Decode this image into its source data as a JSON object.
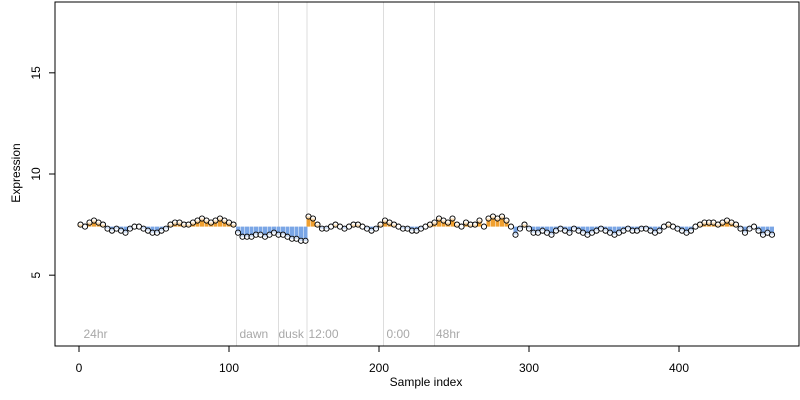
{
  "chart_data": {
    "type": "scatter",
    "title": "",
    "xlabel": "Sample index",
    "ylabel": "Expression",
    "xlim": [
      -16,
      480
    ],
    "ylim": [
      1.5,
      18.5
    ],
    "x_ticks": [
      0,
      100,
      200,
      300,
      400
    ],
    "y_ticks": [
      5,
      10,
      15
    ],
    "grid": false,
    "legend": "none",
    "colors": {
      "point_stroke": "#000000",
      "point_fill": "#ffffff",
      "bar_above": "#f0a030",
      "bar_below": "#7aa6e6",
      "divider": "#dddddd",
      "region_label": "#a8a8a8"
    },
    "baseline": 7.4,
    "dividers": [
      105,
      133,
      152,
      203,
      237
    ],
    "region_labels": [
      {
        "text": "24hr",
        "x": 3
      },
      {
        "text": "dawn",
        "x": 107
      },
      {
        "text": "dusk",
        "x": 133
      },
      {
        "text": "12:00",
        "x": 153
      },
      {
        "text": "0:00",
        "x": 205
      },
      {
        "text": "48hr",
        "x": 238
      }
    ],
    "n_samples": 462,
    "points": [
      [
        1,
        7.5
      ],
      [
        4,
        7.4
      ],
      [
        7,
        7.6
      ],
      [
        10,
        7.7
      ],
      [
        13,
        7.6
      ],
      [
        16,
        7.5
      ],
      [
        19,
        7.3
      ],
      [
        22,
        7.2
      ],
      [
        25,
        7.3
      ],
      [
        28,
        7.2
      ],
      [
        31,
        7.1
      ],
      [
        34,
        7.3
      ],
      [
        37,
        7.4
      ],
      [
        40,
        7.4
      ],
      [
        43,
        7.3
      ],
      [
        46,
        7.2
      ],
      [
        49,
        7.1
      ],
      [
        52,
        7.1
      ],
      [
        55,
        7.2
      ],
      [
        58,
        7.3
      ],
      [
        61,
        7.5
      ],
      [
        64,
        7.6
      ],
      [
        67,
        7.6
      ],
      [
        70,
        7.5
      ],
      [
        73,
        7.5
      ],
      [
        76,
        7.6
      ],
      [
        79,
        7.7
      ],
      [
        82,
        7.8
      ],
      [
        85,
        7.7
      ],
      [
        88,
        7.6
      ],
      [
        91,
        7.7
      ],
      [
        94,
        7.8
      ],
      [
        97,
        7.7
      ],
      [
        100,
        7.6
      ],
      [
        103,
        7.5
      ],
      [
        106,
        7.1
      ],
      [
        109,
        6.9
      ],
      [
        112,
        6.9
      ],
      [
        115,
        6.9
      ],
      [
        118,
        7.0
      ],
      [
        121,
        7.0
      ],
      [
        124,
        6.9
      ],
      [
        127,
        7.0
      ],
      [
        130,
        7.1
      ],
      [
        133,
        7.0
      ],
      [
        136,
        7.0
      ],
      [
        139,
        6.9
      ],
      [
        142,
        6.8
      ],
      [
        145,
        6.8
      ],
      [
        148,
        6.7
      ],
      [
        151,
        6.7
      ],
      [
        153,
        7.9
      ],
      [
        156,
        7.8
      ],
      [
        159,
        7.5
      ],
      [
        162,
        7.3
      ],
      [
        165,
        7.3
      ],
      [
        168,
        7.4
      ],
      [
        171,
        7.5
      ],
      [
        174,
        7.4
      ],
      [
        177,
        7.3
      ],
      [
        180,
        7.4
      ],
      [
        183,
        7.5
      ],
      [
        186,
        7.5
      ],
      [
        189,
        7.4
      ],
      [
        192,
        7.3
      ],
      [
        195,
        7.2
      ],
      [
        198,
        7.3
      ],
      [
        201,
        7.5
      ],
      [
        204,
        7.7
      ],
      [
        207,
        7.6
      ],
      [
        210,
        7.5
      ],
      [
        213,
        7.4
      ],
      [
        216,
        7.3
      ],
      [
        219,
        7.3
      ],
      [
        222,
        7.2
      ],
      [
        225,
        7.2
      ],
      [
        228,
        7.3
      ],
      [
        231,
        7.4
      ],
      [
        234,
        7.5
      ],
      [
        237,
        7.6
      ],
      [
        240,
        7.8
      ],
      [
        243,
        7.7
      ],
      [
        246,
        7.6
      ],
      [
        249,
        7.8
      ],
      [
        252,
        7.5
      ],
      [
        255,
        7.4
      ],
      [
        258,
        7.6
      ],
      [
        261,
        7.5
      ],
      [
        264,
        7.5
      ],
      [
        267,
        7.7
      ],
      [
        270,
        7.4
      ],
      [
        273,
        7.8
      ],
      [
        276,
        7.9
      ],
      [
        279,
        7.8
      ],
      [
        282,
        7.9
      ],
      [
        285,
        7.7
      ],
      [
        288,
        7.4
      ],
      [
        291,
        7.0
      ],
      [
        294,
        7.3
      ],
      [
        297,
        7.5
      ],
      [
        300,
        7.3
      ],
      [
        303,
        7.1
      ],
      [
        306,
        7.1
      ],
      [
        309,
        7.2
      ],
      [
        312,
        7.1
      ],
      [
        315,
        7.0
      ],
      [
        318,
        7.2
      ],
      [
        321,
        7.3
      ],
      [
        324,
        7.2
      ],
      [
        327,
        7.1
      ],
      [
        330,
        7.3
      ],
      [
        333,
        7.2
      ],
      [
        336,
        7.1
      ],
      [
        339,
        7.0
      ],
      [
        342,
        7.1
      ],
      [
        345,
        7.2
      ],
      [
        348,
        7.3
      ],
      [
        351,
        7.2
      ],
      [
        354,
        7.1
      ],
      [
        357,
        7.0
      ],
      [
        360,
        7.1
      ],
      [
        363,
        7.2
      ],
      [
        366,
        7.3
      ],
      [
        369,
        7.2
      ],
      [
        372,
        7.2
      ],
      [
        375,
        7.3
      ],
      [
        378,
        7.3
      ],
      [
        381,
        7.2
      ],
      [
        384,
        7.1
      ],
      [
        387,
        7.2
      ],
      [
        390,
        7.4
      ],
      [
        393,
        7.5
      ],
      [
        396,
        7.4
      ],
      [
        399,
        7.3
      ],
      [
        402,
        7.2
      ],
      [
        405,
        7.1
      ],
      [
        408,
        7.2
      ],
      [
        411,
        7.4
      ],
      [
        414,
        7.5
      ],
      [
        417,
        7.6
      ],
      [
        420,
        7.6
      ],
      [
        423,
        7.6
      ],
      [
        426,
        7.5
      ],
      [
        429,
        7.6
      ],
      [
        432,
        7.7
      ],
      [
        435,
        7.6
      ],
      [
        438,
        7.5
      ],
      [
        441,
        7.3
      ],
      [
        444,
        7.1
      ],
      [
        447,
        7.3
      ],
      [
        450,
        7.4
      ],
      [
        453,
        7.2
      ],
      [
        456,
        7.0
      ],
      [
        459,
        7.1
      ],
      [
        462,
        7.0
      ]
    ]
  }
}
